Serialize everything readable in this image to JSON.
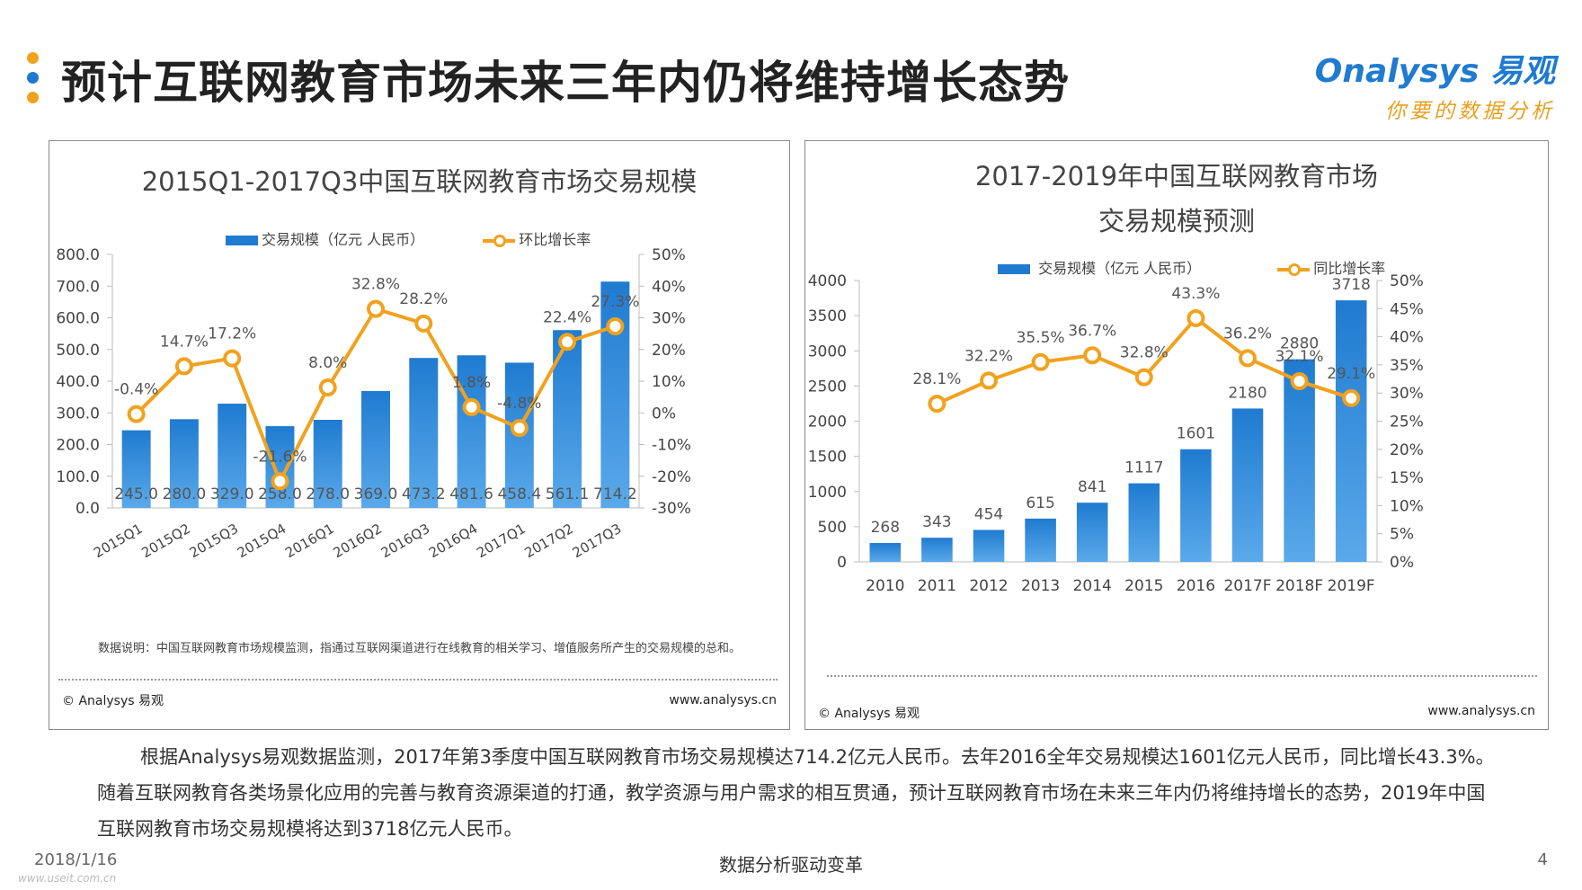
{
  "page": {
    "title": "预计互联网教育市场未来三年内仍将维持增长态势",
    "title_dots_colors": [
      "#f0a21f",
      "#1f7bd0",
      "#f0a21f"
    ],
    "logo_brand": "nalysys 易观",
    "logo_brand_prefix": "O",
    "logo_slogan": "你要的数据分析",
    "summary": "根据Analysys易观数据监测，2017年第3季度中国互联网教育市场交易规模达714.2亿元人民币。去年2016全年交易规模达1601亿元人民币，同比增长43.3%。随着互联网教育各类场景化应用的完善与教育资源渠道的打通，教学资源与用户需求的相互贯通，预计互联网教育市场在未来三年内仍将维持增长的态势，2019年中国互联网教育市场交易规模将达到3718亿元人民币。",
    "footer_date": "2018/1/16",
    "footer_center": "数据分析驱动变革",
    "footer_page": "4",
    "footer_watermark": "www.useit.com.cn"
  },
  "colors": {
    "bar": "#1f7bd0",
    "line": "#f0a21f",
    "accent_orange": "#f0a21f",
    "accent_blue": "#1f7bd0"
  },
  "left_panel": {
    "note": "数据说明：中国互联网教育市场规模监测，指通过互联网渠道进行在线教育的相关学习、增值服务所产生的交易规模的总和。",
    "copyright": "© Analysys 易观",
    "website": "www.analysys.cn"
  },
  "right_panel": {
    "copyright": "© Analysys 易观",
    "website": "www.analysys.cn"
  },
  "chart_data": [
    {
      "type": "bar",
      "title": "2015Q1-2017Q3中国互联网教育市场交易规模",
      "categories": [
        "2015Q1",
        "2015Q2",
        "2015Q3",
        "2015Q4",
        "2016Q1",
        "2016Q2",
        "2016Q3",
        "2016Q4",
        "2017Q1",
        "2017Q2",
        "2017Q3"
      ],
      "series": [
        {
          "name": "交易规模（亿元 人民币）",
          "type": "bar",
          "axis": "left",
          "values": [
            245.0,
            280.0,
            329.0,
            258.0,
            278.0,
            369.0,
            473.2,
            481.6,
            458.4,
            561.1,
            714.2
          ],
          "labels": [
            "245.0",
            "280.0",
            "329.0",
            "258.0",
            "278.0",
            "369.0",
            "473.2",
            "481.6",
            "458.4",
            "561.1",
            "714.2"
          ]
        },
        {
          "name": "环比增长率",
          "type": "line",
          "axis": "right",
          "values": [
            -0.4,
            14.7,
            17.2,
            -21.6,
            8.0,
            32.8,
            28.2,
            1.8,
            -4.8,
            22.4,
            27.3
          ],
          "labels": [
            "-0.4%",
            "14.7%",
            "17.2%",
            "-21.6%",
            "8.0%",
            "32.8%",
            "28.2%",
            "1.8%",
            "-4.8%",
            "22.4%",
            "27.3%"
          ]
        }
      ],
      "y_left": {
        "ylim": [
          0,
          800
        ],
        "ticks": [
          "0.0",
          "100.0",
          "200.0",
          "300.0",
          "400.0",
          "500.0",
          "600.0",
          "700.0",
          "800.0"
        ]
      },
      "y_right": {
        "ylim": [
          -30,
          50
        ],
        "ticks": [
          "-30%",
          "-20%",
          "-10%",
          "0%",
          "10%",
          "20%",
          "30%",
          "40%",
          "50%"
        ]
      },
      "legend": [
        "交易规模（亿元 人民币）",
        "环比增长率"
      ]
    },
    {
      "type": "bar",
      "title_line1": "2017-2019年中国互联网教育市场",
      "title_line2": "交易规模预测",
      "categories": [
        "2010",
        "2011",
        "2012",
        "2013",
        "2014",
        "2015",
        "2016",
        "2017F",
        "2018F",
        "2019F"
      ],
      "series": [
        {
          "name": "交易规模（亿元 人民币）",
          "type": "bar",
          "axis": "left",
          "values": [
            268,
            343,
            454,
            615,
            841,
            1117,
            1601,
            2180,
            2880,
            3718
          ],
          "labels": [
            "268",
            "343",
            "454",
            "615",
            "841",
            "1117",
            "1601",
            "2180",
            "2880",
            "3718"
          ]
        },
        {
          "name": "同比增长率",
          "type": "line",
          "axis": "right",
          "values": [
            null,
            28.1,
            32.2,
            35.5,
            36.7,
            32.8,
            43.3,
            36.2,
            32.1,
            29.1
          ],
          "labels": [
            "",
            "28.1%",
            "32.2%",
            "35.5%",
            "36.7%",
            "32.8%",
            "43.3%",
            "36.2%",
            "32.1%",
            "29.1%"
          ]
        }
      ],
      "y_left": {
        "ylim": [
          0,
          4000
        ],
        "ticks": [
          "0",
          "500",
          "1000",
          "1500",
          "2000",
          "2500",
          "3000",
          "3500",
          "4000"
        ]
      },
      "y_right": {
        "ylim": [
          0,
          50
        ],
        "ticks": [
          "0%",
          "5%",
          "10%",
          "15%",
          "20%",
          "25%",
          "30%",
          "35%",
          "40%",
          "45%",
          "50%"
        ]
      },
      "legend": [
        "交易规模（亿元 人民币）",
        "同比增长率"
      ]
    }
  ]
}
